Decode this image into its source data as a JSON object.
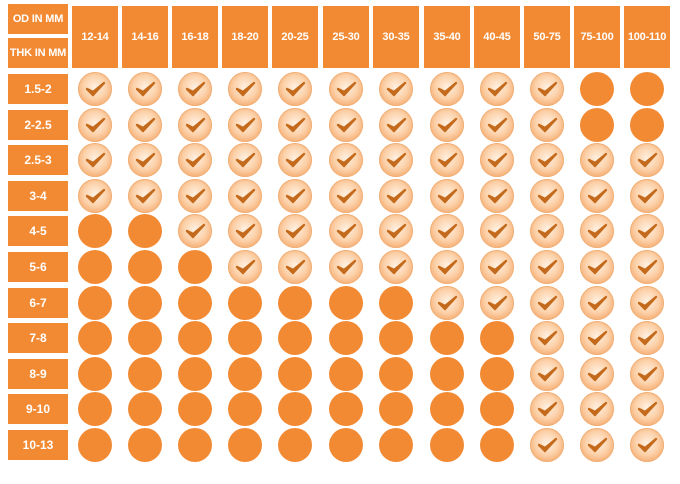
{
  "header": {
    "od_label": "OD IN MM",
    "thk_label": "THK IN MM"
  },
  "columns": [
    "12-14",
    "14-16",
    "16-18",
    "18-20",
    "20-25",
    "25-30",
    "30-35",
    "35-40",
    "40-45",
    "50-75",
    "75-100",
    "100-110"
  ],
  "rows": [
    {
      "label": "1.5-2",
      "cells": [
        "check",
        "check",
        "check",
        "check",
        "check",
        "check",
        "check",
        "check",
        "check",
        "check",
        "full",
        "full"
      ]
    },
    {
      "label": "2-2.5",
      "cells": [
        "check",
        "check",
        "check",
        "check",
        "check",
        "check",
        "check",
        "check",
        "check",
        "check",
        "full",
        "full"
      ]
    },
    {
      "label": "2.5-3",
      "cells": [
        "check",
        "check",
        "check",
        "check",
        "check",
        "check",
        "check",
        "check",
        "check",
        "check",
        "check",
        "check"
      ]
    },
    {
      "label": "3-4",
      "cells": [
        "check",
        "check",
        "check",
        "check",
        "check",
        "check",
        "check",
        "check",
        "check",
        "check",
        "check",
        "check"
      ]
    },
    {
      "label": "4-5",
      "cells": [
        "full",
        "full",
        "check",
        "check",
        "check",
        "check",
        "check",
        "check",
        "check",
        "check",
        "check",
        "check"
      ]
    },
    {
      "label": "5-6",
      "cells": [
        "full",
        "full",
        "full",
        "check",
        "check",
        "check",
        "check",
        "check",
        "check",
        "check",
        "check",
        "check"
      ]
    },
    {
      "label": "6-7",
      "cells": [
        "full",
        "full",
        "full",
        "full",
        "full",
        "full",
        "full",
        "check",
        "check",
        "check",
        "check",
        "check"
      ]
    },
    {
      "label": "7-8",
      "cells": [
        "full",
        "full",
        "full",
        "full",
        "full",
        "full",
        "full",
        "full",
        "full",
        "check",
        "check",
        "check"
      ]
    },
    {
      "label": "8-9",
      "cells": [
        "full",
        "full",
        "full",
        "full",
        "full",
        "full",
        "full",
        "full",
        "full",
        "check",
        "check",
        "check"
      ]
    },
    {
      "label": "9-10",
      "cells": [
        "full",
        "full",
        "full",
        "full",
        "full",
        "full",
        "full",
        "full",
        "full",
        "check",
        "check",
        "check"
      ]
    },
    {
      "label": "10-13",
      "cells": [
        "full",
        "full",
        "full",
        "full",
        "full",
        "full",
        "full",
        "full",
        "full",
        "check",
        "check",
        "check"
      ]
    }
  ],
  "cell_icons": {
    "check": "check-circle-icon",
    "full": "solid-circle-icon"
  },
  "colors": {
    "accent": "#f28a34",
    "text_on_accent": "#ffffff",
    "check_mark": "#c46a1c"
  }
}
